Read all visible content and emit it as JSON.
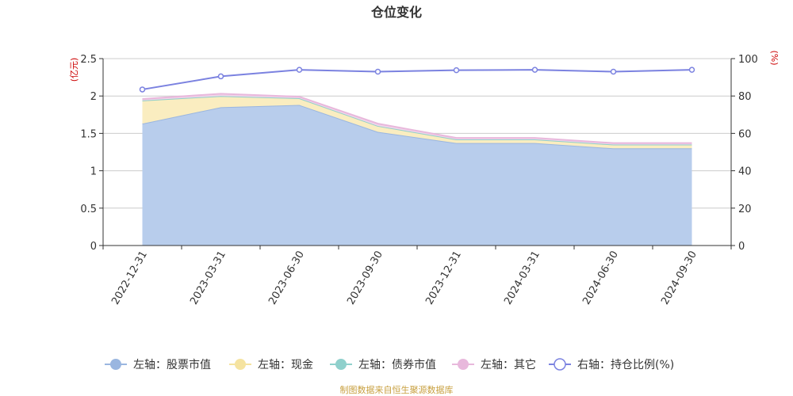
{
  "chart_data": {
    "type": "area",
    "title": "仓位变化",
    "categories": [
      "2022-12-31",
      "2023-03-31",
      "2023-06-30",
      "2023-09-30",
      "2023-12-31",
      "2024-03-31",
      "2024-06-30",
      "2024-09-30"
    ],
    "left_axis": {
      "unit": "(亿元)",
      "ylim": [
        0,
        2.5
      ],
      "ticks": [
        "0",
        "0.5",
        "1",
        "1.5",
        "2",
        "2.5"
      ],
      "tick_values": [
        0,
        0.5,
        1,
        1.5,
        2,
        2.5
      ]
    },
    "right_axis": {
      "unit": "(%)",
      "ylim": [
        0,
        100
      ],
      "ticks": [
        "0",
        "20",
        "40",
        "60",
        "80",
        "100"
      ],
      "tick_values": [
        0,
        20,
        40,
        60,
        80,
        100
      ]
    },
    "series": [
      {
        "name": "左轴：股票市值",
        "axis": "left",
        "kind": "stacked-area",
        "color": "#9ab6e0",
        "fill": "#b8cdec",
        "values": [
          1.63,
          1.85,
          1.88,
          1.52,
          1.37,
          1.37,
          1.3,
          1.3
        ]
      },
      {
        "name": "左轴：现金",
        "axis": "left",
        "kind": "stacked-area",
        "color": "#f5e3a0",
        "fill": "#faedc0",
        "values": [
          0.31,
          0.15,
          0.09,
          0.08,
          0.05,
          0.05,
          0.05,
          0.05
        ]
      },
      {
        "name": "左轴：债券市值",
        "axis": "left",
        "kind": "stacked-area",
        "color": "#8fd0cc",
        "fill": "#b8e3e0",
        "values": [
          0,
          0,
          0,
          0,
          0,
          0,
          0,
          0
        ]
      },
      {
        "name": "左轴：其它",
        "axis": "left",
        "kind": "stacked-area",
        "color": "#e8b8dc",
        "fill": "#f2d6ea",
        "values": [
          0.02,
          0.03,
          0.02,
          0.03,
          0.02,
          0.02,
          0.02,
          0.02
        ]
      },
      {
        "name": "右轴：持仓比例(%)",
        "axis": "right",
        "kind": "line",
        "color": "#7b82e0",
        "values": [
          83.5,
          90.5,
          94.0,
          93.0,
          93.8,
          94.0,
          93.0,
          94.0
        ]
      }
    ],
    "grid": true,
    "legend": "bottom"
  },
  "footer": {
    "source": "制图数据来自恒生聚源数据库"
  }
}
